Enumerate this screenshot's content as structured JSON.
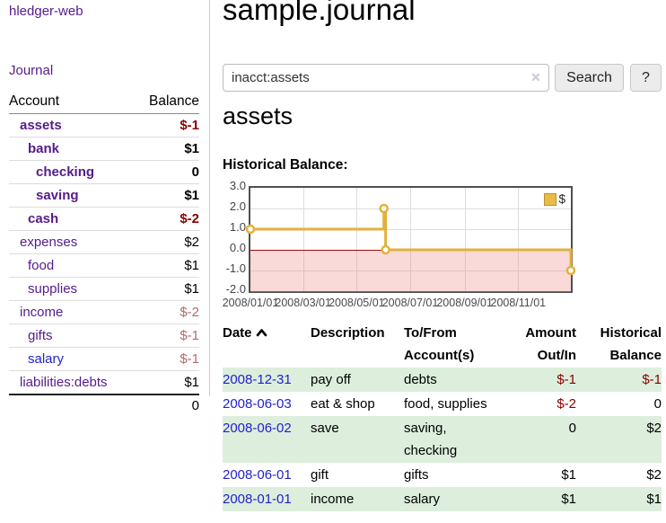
{
  "app": {
    "brand": "hledger-web",
    "nav_journal": "Journal"
  },
  "sidebar": {
    "header": {
      "account": "Account",
      "balance": "Balance"
    },
    "accounts": [
      {
        "name": "assets",
        "depth": 1,
        "bold": true,
        "balance": "$-1"
      },
      {
        "name": "bank",
        "depth": 2,
        "bold": true,
        "balance": "$1"
      },
      {
        "name": "checking",
        "depth": 3,
        "bold": true,
        "balance": "0"
      },
      {
        "name": "saving",
        "depth": 3,
        "bold": true,
        "balance": "$1"
      },
      {
        "name": "cash",
        "depth": 2,
        "bold": true,
        "balance": "$-2"
      },
      {
        "name": "expenses",
        "depth": 1,
        "bold": false,
        "balance": "$2"
      },
      {
        "name": "food",
        "depth": 2,
        "bold": false,
        "balance": "$1"
      },
      {
        "name": "supplies",
        "depth": 2,
        "bold": false,
        "balance": "$1"
      },
      {
        "name": "income",
        "depth": 1,
        "bold": false,
        "balance": "$-2"
      },
      {
        "name": "gifts",
        "depth": 2,
        "bold": false,
        "balance": "$-1"
      },
      {
        "name": "salary",
        "depth": 2,
        "bold": false,
        "balance": "$-1",
        "blue": true
      },
      {
        "name": "liabilities:debts",
        "depth": 1,
        "bold": false,
        "balance": "$1"
      }
    ],
    "total": "0"
  },
  "header": {
    "title": "sample.journal"
  },
  "search": {
    "query": "inacct:assets",
    "clear_icon": "✕",
    "search_label": "Search",
    "help_label": "?"
  },
  "account_page": {
    "heading": "assets",
    "chart_label": "Historical Balance:"
  },
  "chart_data": {
    "type": "line",
    "step": true,
    "title": "Historical Balance",
    "series": [
      {
        "name": "$",
        "color": "#e2b13c",
        "points": [
          [
            "2008-01-01",
            1
          ],
          [
            "2008-06-01",
            2
          ],
          [
            "2008-06-03",
            0
          ],
          [
            "2008-12-31",
            -1
          ]
        ]
      }
    ],
    "xlim": [
      "2008-01-01",
      "2008-12-31"
    ],
    "ylim": [
      -2,
      3
    ],
    "yticks": [
      3.0,
      2.0,
      1.0,
      0.0,
      -1.0,
      -2.0
    ],
    "xticks": [
      "2008/01/01",
      "2008/03/01",
      "2008/05/01",
      "2008/07/01",
      "2008/09/01",
      "2008/11/01"
    ],
    "grid": true,
    "legend_position": "top-right",
    "negative_region_fill": "rgba(240,130,130,0.30)",
    "zero_line_color": "#9c0b0b",
    "marker": "open-circle"
  },
  "register": {
    "columns": [
      {
        "line1": "Date",
        "line2": "",
        "sorted": "asc"
      },
      {
        "line1": "Description",
        "line2": ""
      },
      {
        "line1": "To/From",
        "line2": "Account(s)"
      },
      {
        "line1": "Amount",
        "line2": "Out/In"
      },
      {
        "line1": "Historical",
        "line2": "Balance"
      }
    ],
    "rows": [
      {
        "date": "2008-12-31",
        "description": "pay off",
        "accounts": "debts",
        "amount": "$-1",
        "balance": "$-1"
      },
      {
        "date": "2008-06-03",
        "description": "eat & shop",
        "accounts": "food, supplies",
        "amount": "$-2",
        "balance": "0"
      },
      {
        "date": "2008-06-02",
        "description": "save",
        "accounts": "saving, checking",
        "amount": "0",
        "balance": "$2"
      },
      {
        "date": "2008-06-01",
        "description": "gift",
        "accounts": "gifts",
        "amount": "$1",
        "balance": "$2"
      },
      {
        "date": "2008-01-01",
        "description": "income",
        "accounts": "salary",
        "amount": "$1",
        "balance": "$1"
      }
    ]
  },
  "colors": {
    "link_purple": "#551b8b",
    "link_blue": "#2222cc",
    "negative_strong": "#8b0000",
    "negative_dim": "#b36b6b",
    "row_green": "#ddeedd",
    "chart_line": "#e2b13c"
  }
}
